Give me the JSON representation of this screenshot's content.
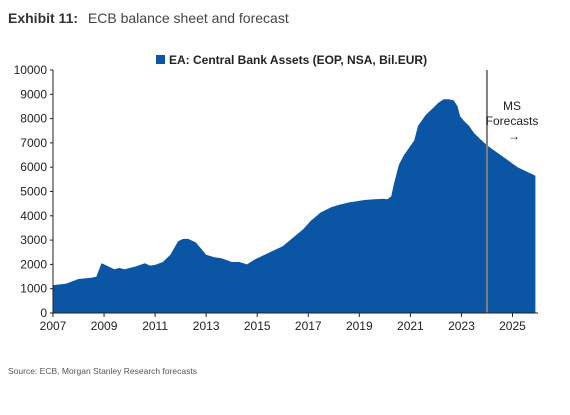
{
  "header": {
    "exhibit_label": "Exhibit 11:",
    "exhibit_title": "ECB balance sheet and forecast"
  },
  "source": "Source: ECB, Morgan Stanley Research forecasts",
  "colors": {
    "series": "#0b56a4",
    "divider": "#7f7f7f",
    "axis": "#222222"
  },
  "chart_data": {
    "type": "area",
    "title": "",
    "xlabel": "",
    "ylabel": "",
    "ylim": [
      0,
      10000
    ],
    "xlim": [
      2007,
      2026
    ],
    "y_ticks": [
      "0",
      "1000",
      "2000",
      "3000",
      "4000",
      "5000",
      "6000",
      "7000",
      "8000",
      "9000",
      "10000"
    ],
    "x_ticks": [
      "2007",
      "2009",
      "2011",
      "2013",
      "2015",
      "2017",
      "2019",
      "2021",
      "2023",
      "2025"
    ],
    "legend": {
      "label": "EA: Central Bank Assets (EOP, NSA, Bil.EUR)",
      "position": "top-center"
    },
    "grid": false,
    "forecast_divider_x": 2024.0,
    "annotation": {
      "line1": "MS",
      "line2": "Forecasts",
      "arrow": "→"
    },
    "series": [
      {
        "name": "EA: Central Bank Assets (EOP, NSA, Bil.EUR)",
        "x": [
          2007.0,
          2007.5,
          2008.0,
          2008.5,
          2008.7,
          2008.9,
          2009.0,
          2009.4,
          2009.6,
          2009.8,
          2010.2,
          2010.6,
          2010.8,
          2011.0,
          2011.3,
          2011.6,
          2011.9,
          2012.1,
          2012.3,
          2012.6,
          2013.0,
          2013.3,
          2013.6,
          2014.0,
          2014.3,
          2014.6,
          2014.9,
          2015.2,
          2015.6,
          2016.0,
          2016.4,
          2016.8,
          2017.1,
          2017.5,
          2017.9,
          2018.2,
          2018.6,
          2018.9,
          2019.2,
          2019.6,
          2019.9,
          2020.1,
          2020.25,
          2020.35,
          2020.55,
          2020.75,
          2020.95,
          2021.15,
          2021.3,
          2021.6,
          2021.9,
          2022.1,
          2022.3,
          2022.5,
          2022.7,
          2022.85,
          2022.95,
          2023.1,
          2023.3,
          2023.5,
          2023.8,
          2024.0,
          2024.4,
          2024.8,
          2025.2,
          2025.6,
          2025.9
        ],
        "values": [
          1150,
          1200,
          1400,
          1450,
          1500,
          2050,
          2000,
          1800,
          1850,
          1800,
          1900,
          2050,
          1950,
          1980,
          2100,
          2400,
          2950,
          3050,
          3050,
          2900,
          2400,
          2300,
          2250,
          2100,
          2100,
          2000,
          2200,
          2350,
          2550,
          2750,
          3100,
          3450,
          3800,
          4150,
          4350,
          4450,
          4550,
          4600,
          4650,
          4680,
          4700,
          4680,
          4800,
          5300,
          6100,
          6500,
          6800,
          7100,
          7700,
          8150,
          8450,
          8650,
          8800,
          8800,
          8750,
          8500,
          8100,
          7900,
          7700,
          7400,
          7100,
          6900,
          6600,
          6300,
          6000,
          5800,
          5650
        ]
      }
    ]
  }
}
